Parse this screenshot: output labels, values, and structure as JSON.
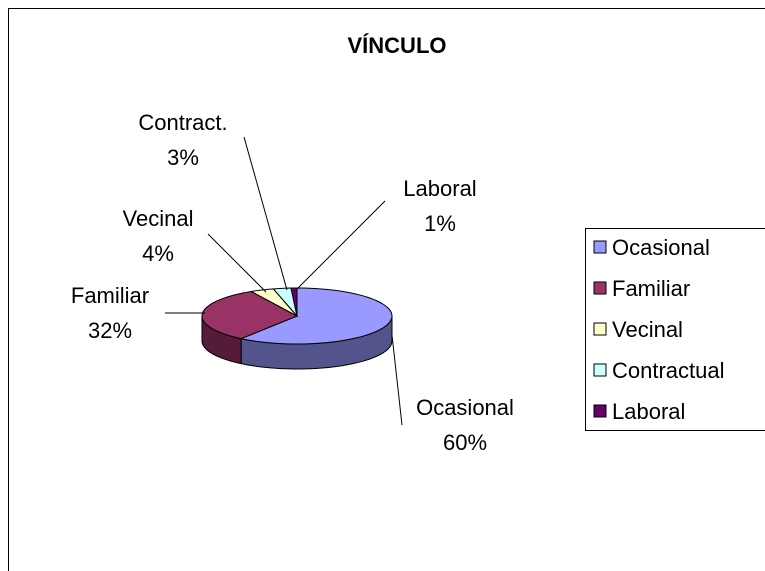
{
  "chart_data": {
    "type": "pie3d",
    "title": "VÍNCULO",
    "categories": [
      "Ocasional",
      "Familiar",
      "Vecinal",
      "Contractual",
      "Laboral"
    ],
    "label_names": [
      "Ocasional",
      "Familiar",
      "Vecinal",
      "Contract.",
      "Laboral"
    ],
    "values": [
      60,
      32,
      4,
      3,
      1
    ],
    "value_labels": [
      "60%",
      "32%",
      "4%",
      "3%",
      "1%"
    ],
    "colors": [
      "#9999ff",
      "#993366",
      "#ffffcc",
      "#ccffff",
      "#660066"
    ],
    "legend": "right"
  }
}
